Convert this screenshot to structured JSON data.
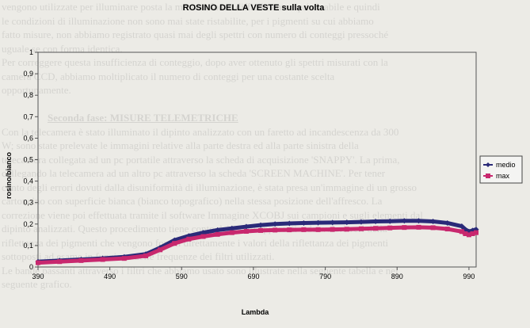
{
  "background_text": [
    "vengono utilizzate per illuminare posta la messa a fuoco difficilmente ripristinabile e quindi",
    "le condizioni di illuminazione non sono mai state ristabilite, per i pigmenti su cui abbiamo",
    "fatto misure, non abbiamo registrato quasi mai degli spettri con numero di conteggi pressoché",
    "uguale se con forma identica.",
    "Per correggere questa insufficienza di conteggio, dopo aver ottenuto gli spettri misurati con la",
    "camera CCD, abbiamo moltiplicato il numero di conteggi per una costante scelta",
    "opportunamente.",
    "",
    "Seconda fase: MISURE TELEMETRICHE",
    "Con la telecamera è stato illuminato il dipinto analizzato con un faretto ad incandescenza da 300",
    "W; sono state prelevate le immagini relative alla parte destra ed alla parte sinistra della",
    "telecamera collegata ad un pc portatile attraverso la scheda di acquisizione 'SNAPPY'. La prima,",
    "collegando la telecamera ad un altro pc attraverso la scheda 'SCREEN MACHINE'. Per tener",
    "conto degli errori dovuti dalla disuniformità di illuminazione, è stata presa un'immagine di un grosso",
    "cartoncino con superficie bianca (bianco topografico) nella stessa posizione dell'affresco. La",
    "correzione viene poi effettuata tramite il software Immagine XCOBJ sui campioni e sugli elementi dal",
    "dipinto analizzati. Questo procedimento tiene conto dei valori apparenti e dei valori veri della",
    "riflettanza dei pigmenti che vengono forniti direttamente i valori della riflettanza dei pigmenti",
    "sottoposti ad esame in funzione delle frequenze dei filtri utilizzati.",
    "Le bande passanti attraverso i filtri che abbiamo usato sono illustrate nella seguente tabella e nel",
    "seguente grafico."
  ],
  "chart_data": {
    "type": "line",
    "title": "ROSINO DELLA VESTE sulla volta",
    "xlabel": "Lambda",
    "ylabel": "rosino/bianco",
    "xlim": [
      390,
      1000
    ],
    "ylim": [
      0,
      1
    ],
    "x_ticks": [
      390,
      490,
      590,
      690,
      790,
      890,
      990
    ],
    "y_ticks": [
      "0",
      "0,1",
      "0,2",
      "0,3",
      "0,4",
      "0,5",
      "0,6",
      "0,7",
      "0,8",
      "0,9",
      "1"
    ],
    "grid": false,
    "legend_position": "right",
    "series": [
      {
        "name": "medio",
        "color": "#2a2a78",
        "marker": "diamond",
        "x": [
          390,
          420,
          450,
          480,
          510,
          540,
          560,
          580,
          600,
          620,
          640,
          660,
          680,
          700,
          720,
          740,
          760,
          780,
          800,
          820,
          840,
          860,
          880,
          900,
          920,
          940,
          960,
          980,
          985,
          990,
          995,
          1000
        ],
        "y": [
          0.025,
          0.03,
          0.035,
          0.04,
          0.047,
          0.06,
          0.09,
          0.125,
          0.145,
          0.16,
          0.172,
          0.18,
          0.188,
          0.195,
          0.2,
          0.203,
          0.205,
          0.206,
          0.207,
          0.208,
          0.21,
          0.212,
          0.213,
          0.215,
          0.215,
          0.212,
          0.205,
          0.19,
          0.175,
          0.165,
          0.17,
          0.175
        ]
      },
      {
        "name": "max",
        "color": "#c8286e",
        "marker": "square",
        "x": [
          390,
          420,
          450,
          480,
          510,
          540,
          560,
          580,
          600,
          620,
          640,
          660,
          680,
          700,
          720,
          740,
          760,
          780,
          800,
          820,
          840,
          860,
          880,
          900,
          920,
          940,
          960,
          980,
          985,
          990,
          995,
          1000
        ],
        "y": [
          0.02,
          0.025,
          0.03,
          0.035,
          0.04,
          0.052,
          0.08,
          0.11,
          0.13,
          0.142,
          0.152,
          0.16,
          0.166,
          0.17,
          0.172,
          0.173,
          0.174,
          0.174,
          0.175,
          0.176,
          0.178,
          0.18,
          0.182,
          0.184,
          0.185,
          0.183,
          0.177,
          0.165,
          0.155,
          0.15,
          0.155,
          0.16
        ]
      }
    ]
  }
}
